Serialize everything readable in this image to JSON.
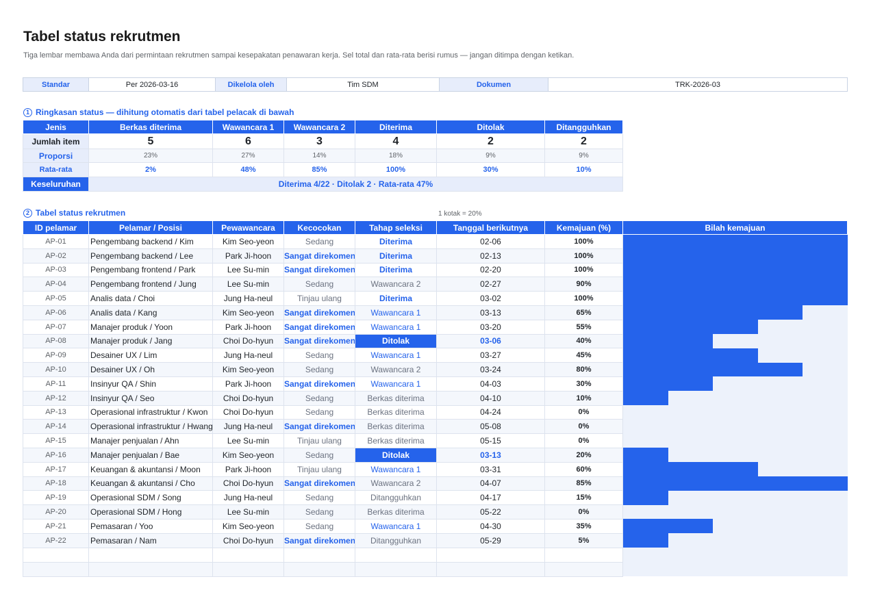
{
  "page": {
    "title": "Tabel status rekrutmen",
    "subtitle": "Tiga lembar membawa Anda dari permintaan rekrutmen sampai kesepakatan penawaran kerja. Sel total dan rata-rata berisi rumus — jangan ditimpa dengan ketikan."
  },
  "meta": {
    "standard_label": "Standar",
    "standard_value": "Per 2026-03-16",
    "managed_label": "Dikelola oleh",
    "managed_value": "Tim SDM",
    "doc_label": "Dokumen",
    "doc_value": "TRK-2026-03"
  },
  "summary": {
    "num": "1",
    "heading": "Ringkasan status — dihitung otomatis dari tabel pelacak di bawah",
    "col0": "Jenis",
    "columns": [
      "Berkas diterima",
      "Wawancara 1",
      "Wawancara 2",
      "Diterima",
      "Ditolak",
      "Ditangguhkan"
    ],
    "count_label": "Jumlah item",
    "counts": [
      "5",
      "6",
      "3",
      "4",
      "2",
      "2"
    ],
    "prop_label": "Proporsi",
    "props": [
      "23%",
      "27%",
      "14%",
      "18%",
      "9%",
      "9%"
    ],
    "avg_label": "Rata-rata",
    "avgs": [
      "2%",
      "48%",
      "85%",
      "100%",
      "30%",
      "10%"
    ],
    "overall_label": "Keseluruhan",
    "overall_value": "Diterima 4/22 · Ditolak 2 · Rata-rata 47%"
  },
  "tracker": {
    "num": "2",
    "heading": "Tabel status rekrutmen",
    "scale_note": "1 kotak = 20%",
    "headers": [
      "ID pelamar",
      "Pelamar / Posisi",
      "Pewawancara",
      "Kecocokan",
      "Tahap seleksi",
      "Tanggal berikutnya",
      "Kemajuan (%)",
      "Bilah kemajuan"
    ],
    "rows": [
      {
        "id": "AP-01",
        "name": "Pengembang backend / Kim",
        "iv": "Kim Seo-yeon",
        "match": "Sedang",
        "mt": "muted",
        "stage": "Diterima",
        "st": "done",
        "date": "02-06",
        "dt": "",
        "pct": "100%",
        "progress": 100
      },
      {
        "id": "AP-02",
        "name": "Pengembang backend / Lee",
        "iv": "Park Ji-hoon",
        "match": "Sangat direkomendasikan",
        "mt": "strong",
        "stage": "Diterima",
        "st": "done",
        "date": "02-13",
        "dt": "",
        "pct": "100%",
        "progress": 100
      },
      {
        "id": "AP-03",
        "name": "Pengembang frontend / Park",
        "iv": "Lee Su-min",
        "match": "Sangat direkomendasikan",
        "mt": "strong",
        "stage": "Diterima",
        "st": "done",
        "date": "02-20",
        "dt": "",
        "pct": "100%",
        "progress": 100
      },
      {
        "id": "AP-04",
        "name": "Pengembang frontend / Jung",
        "iv": "Lee Su-min",
        "match": "Sedang",
        "mt": "muted",
        "stage": "Wawancara 2",
        "st": "muted",
        "date": "02-27",
        "dt": "",
        "pct": "90%",
        "progress": 90
      },
      {
        "id": "AP-05",
        "name": "Analis data / Choi",
        "iv": "Jung Ha-neul",
        "match": "Tinjau ulang",
        "mt": "muted",
        "stage": "Diterima",
        "st": "done",
        "date": "03-02",
        "dt": "",
        "pct": "100%",
        "progress": 100
      },
      {
        "id": "AP-06",
        "name": "Analis data / Kang",
        "iv": "Kim Seo-yeon",
        "match": "Sangat direkomendasikan",
        "mt": "strong",
        "stage": "Wawancara 1",
        "st": "link",
        "date": "03-13",
        "dt": "",
        "pct": "65%",
        "progress": 65
      },
      {
        "id": "AP-07",
        "name": "Manajer produk / Yoon",
        "iv": "Park Ji-hoon",
        "match": "Sangat direkomendasikan",
        "mt": "strong",
        "stage": "Wawancara 1",
        "st": "link",
        "date": "03-20",
        "dt": "",
        "pct": "55%",
        "progress": 55
      },
      {
        "id": "AP-08",
        "name": "Manajer produk / Jang",
        "iv": "Choi Do-hyun",
        "match": "Sangat direkomendasikan",
        "mt": "strong",
        "stage": "Ditolak",
        "st": "rej",
        "date": "03-06",
        "dt": "hot",
        "pct": "40%",
        "progress": 40
      },
      {
        "id": "AP-09",
        "name": "Desainer UX / Lim",
        "iv": "Jung Ha-neul",
        "match": "Sedang",
        "mt": "muted",
        "stage": "Wawancara 1",
        "st": "link",
        "date": "03-27",
        "dt": "",
        "pct": "45%",
        "progress": 45
      },
      {
        "id": "AP-10",
        "name": "Desainer UX / Oh",
        "iv": "Kim Seo-yeon",
        "match": "Sedang",
        "mt": "muted",
        "stage": "Wawancara 2",
        "st": "muted",
        "date": "03-24",
        "dt": "",
        "pct": "80%",
        "progress": 80
      },
      {
        "id": "AP-11",
        "name": "Insinyur QA / Shin",
        "iv": "Park Ji-hoon",
        "match": "Sangat direkomendasikan",
        "mt": "strong",
        "stage": "Wawancara 1",
        "st": "link",
        "date": "04-03",
        "dt": "",
        "pct": "30%",
        "progress": 30
      },
      {
        "id": "AP-12",
        "name": "Insinyur QA / Seo",
        "iv": "Choi Do-hyun",
        "match": "Sedang",
        "mt": "muted",
        "stage": "Berkas diterima",
        "st": "muted",
        "date": "04-10",
        "dt": "",
        "pct": "10%",
        "progress": 10
      },
      {
        "id": "AP-13",
        "name": "Operasional infrastruktur / Kwon",
        "iv": "Choi Do-hyun",
        "match": "Sedang",
        "mt": "muted",
        "stage": "Berkas diterima",
        "st": "muted",
        "date": "04-24",
        "dt": "",
        "pct": "0%",
        "progress": 0
      },
      {
        "id": "AP-14",
        "name": "Operasional infrastruktur / Hwang",
        "iv": "Jung Ha-neul",
        "match": "Sangat direkomendasikan",
        "mt": "strong",
        "stage": "Berkas diterima",
        "st": "muted",
        "date": "05-08",
        "dt": "",
        "pct": "0%",
        "progress": 0
      },
      {
        "id": "AP-15",
        "name": "Manajer penjualan / Ahn",
        "iv": "Lee Su-min",
        "match": "Tinjau ulang",
        "mt": "muted",
        "stage": "Berkas diterima",
        "st": "muted",
        "date": "05-15",
        "dt": "",
        "pct": "0%",
        "progress": 0
      },
      {
        "id": "AP-16",
        "name": "Manajer penjualan / Bae",
        "iv": "Kim Seo-yeon",
        "match": "Sedang",
        "mt": "muted",
        "stage": "Ditolak",
        "st": "rej",
        "date": "03-13",
        "dt": "hot",
        "pct": "20%",
        "progress": 20
      },
      {
        "id": "AP-17",
        "name": "Keuangan & akuntansi / Moon",
        "iv": "Park Ji-hoon",
        "match": "Tinjau ulang",
        "mt": "muted",
        "stage": "Wawancara 1",
        "st": "link",
        "date": "03-31",
        "dt": "",
        "pct": "60%",
        "progress": 60
      },
      {
        "id": "AP-18",
        "name": "Keuangan & akuntansi / Cho",
        "iv": "Choi Do-hyun",
        "match": "Sangat direkomendasikan",
        "mt": "strong",
        "stage": "Wawancara 2",
        "st": "muted",
        "date": "04-07",
        "dt": "",
        "pct": "85%",
        "progress": 85
      },
      {
        "id": "AP-19",
        "name": "Operasional SDM / Song",
        "iv": "Jung Ha-neul",
        "match": "Sedang",
        "mt": "muted",
        "stage": "Ditangguhkan",
        "st": "muted",
        "date": "04-17",
        "dt": "",
        "pct": "15%",
        "progress": 15
      },
      {
        "id": "AP-20",
        "name": "Operasional SDM / Hong",
        "iv": "Lee Su-min",
        "match": "Sedang",
        "mt": "muted",
        "stage": "Berkas diterima",
        "st": "muted",
        "date": "05-22",
        "dt": "",
        "pct": "0%",
        "progress": 0
      },
      {
        "id": "AP-21",
        "name": "Pemasaran / Yoo",
        "iv": "Kim Seo-yeon",
        "match": "Sedang",
        "mt": "muted",
        "stage": "Wawancara 1",
        "st": "link",
        "date": "04-30",
        "dt": "",
        "pct": "35%",
        "progress": 35
      },
      {
        "id": "AP-22",
        "name": "Pemasaran / Nam",
        "iv": "Choi Do-hyun",
        "match": "Sangat direkomendasikan",
        "mt": "strong",
        "stage": "Ditangguhkan",
        "st": "muted",
        "date": "05-29",
        "dt": "",
        "pct": "5%",
        "progress": 5
      }
    ]
  }
}
